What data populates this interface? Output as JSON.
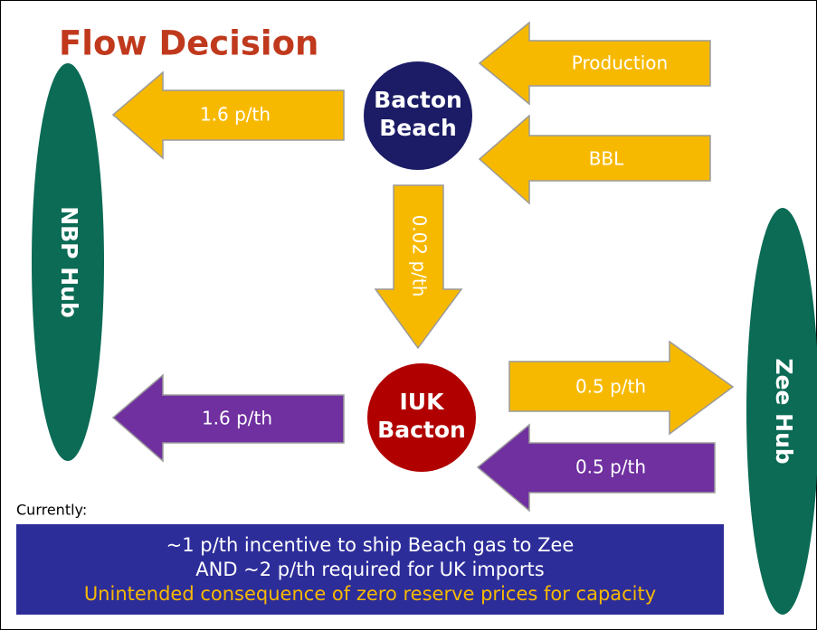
{
  "title": "Flow Decision",
  "nodes": [
    {
      "label": "NBP Hub"
    },
    {
      "label": "Bacton Beach"
    },
    {
      "label": "IUK Bacton"
    },
    {
      "label": "Zee Hub"
    }
  ],
  "arrows": [
    {
      "label": "Production"
    },
    {
      "label": "BBL"
    },
    {
      "label": "1.6 p/th"
    },
    {
      "label": "0.02 p/th"
    },
    {
      "label": "0.5 p/th"
    },
    {
      "label": "0.5 p/th"
    },
    {
      "label": "1.6 p/th"
    }
  ],
  "note": {
    "heading": "Currently:",
    "lines": [
      "~1 p/th incentive to ship Beach gas to Zee",
      "AND ~2 p/th required for UK imports",
      "Unintended consequence of zero reserve prices for capacity"
    ]
  }
}
